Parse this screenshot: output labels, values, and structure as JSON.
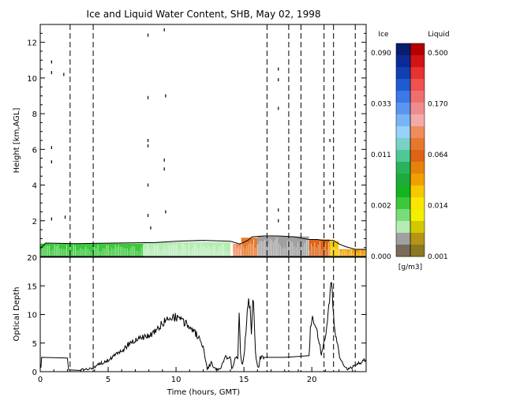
{
  "title": "Ice and Liquid Water Content, SHB, May 02, 1998",
  "colorbar": {
    "ice_header": "Ice",
    "liquid_header": "Liquid",
    "units": "[g/m3]",
    "ice_ticks": [
      "0.090",
      "0.033",
      "0.011",
      "0.002",
      "0.000"
    ],
    "liquid_ticks": [
      "0.500",
      "0.170",
      "0.064",
      "0.014",
      "0.001"
    ],
    "ice_colors": [
      "#0a1e6e",
      "#0c2a96",
      "#1040b4",
      "#1e5ad2",
      "#3c78e6",
      "#5a96f0",
      "#78b4f5",
      "#96d2fa",
      "#78d2c8",
      "#50c896",
      "#28b45a",
      "#1eaa3c",
      "#14b41e",
      "#3cc83c",
      "#78dc78",
      "#b4ecb4",
      "#a0a0a0",
      "#7a6a5a"
    ],
    "liquid_colors": [
      "#b40000",
      "#d21414",
      "#e63232",
      "#f05050",
      "#f06e6e",
      "#f08c8c",
      "#f5aaaa",
      "#f08c5a",
      "#e6782d",
      "#dc6414",
      "#e6820a",
      "#f0a000",
      "#f5c800",
      "#fae600",
      "#f0f000",
      "#d2c800",
      "#b49614",
      "#8c7820"
    ]
  },
  "chart_data": [
    {
      "type": "heatmap",
      "title": "Ice and Liquid Water Content, SHB, May 02, 1998",
      "ylabel": "Height [km,AGL]",
      "xlim": [
        0,
        24
      ],
      "ylim": [
        0,
        13
      ],
      "yticks": [
        2,
        4,
        6,
        8,
        10,
        12
      ],
      "cloud_top_km": {
        "x": [
          0,
          0.4,
          2.6,
          8.5,
          10.0,
          12.0,
          14.0,
          14.7,
          15.3,
          15.6,
          16.5,
          17.5,
          18.7,
          19.8,
          20.4,
          20.9,
          21.6,
          22.0,
          22.5,
          23.2,
          24.0
        ],
        "y": [
          0.45,
          0.75,
          0.72,
          0.78,
          0.85,
          0.9,
          0.85,
          0.7,
          0.9,
          1.1,
          1.15,
          1.15,
          1.1,
          0.95,
          0.95,
          0.9,
          0.9,
          0.7,
          0.55,
          0.4,
          0.4
        ]
      },
      "segments": [
        {
          "x0": 0.0,
          "x1": 14.0,
          "phase": "liquid-low",
          "color": "#3cc83c",
          "top_km": 0.72
        },
        {
          "x0": 7.6,
          "x1": 14.0,
          "phase": "ice-low",
          "color": "#b4ecb4",
          "top_km": 0.8
        },
        {
          "x0": 14.2,
          "x1": 14.8,
          "phase": "liquid-mid",
          "color": "#f08c5a",
          "top_km": 0.7
        },
        {
          "x0": 14.8,
          "x1": 16.0,
          "phase": "liquid-mid",
          "color": "#e6782d",
          "top_km": 1.05
        },
        {
          "x0": 16.0,
          "x1": 19.8,
          "phase": "ice-low",
          "color": "#a0a0a0",
          "top_km": 1.12
        },
        {
          "x0": 19.8,
          "x1": 21.3,
          "phase": "liquid-mid",
          "color": "#dc6414",
          "top_km": 0.95
        },
        {
          "x0": 21.3,
          "x1": 22.0,
          "phase": "liquid-low",
          "color": "#f5c800",
          "top_km": 0.85
        },
        {
          "x0": 22.0,
          "x1": 24.0,
          "phase": "liquid-low",
          "color": "#f0a000",
          "top_km": 0.4
        }
      ],
      "sparse_ice_points": [
        [
          0.8,
          10.9
        ],
        [
          0.8,
          10.3
        ],
        [
          0.8,
          6.1
        ],
        [
          0.8,
          5.3
        ],
        [
          0.8,
          2.1
        ],
        [
          1.7,
          10.2
        ],
        [
          1.8,
          2.2
        ],
        [
          7.9,
          12.4
        ],
        [
          7.9,
          8.9
        ],
        [
          7.9,
          6.5
        ],
        [
          7.9,
          6.2
        ],
        [
          7.9,
          4.0
        ],
        [
          7.9,
          2.3
        ],
        [
          8.1,
          1.6
        ],
        [
          9.1,
          12.7
        ],
        [
          9.1,
          5.4
        ],
        [
          9.1,
          4.9
        ],
        [
          9.2,
          9.0
        ],
        [
          9.2,
          2.5
        ],
        [
          17.5,
          10.5
        ],
        [
          17.5,
          9.9
        ],
        [
          17.5,
          8.3
        ],
        [
          17.5,
          2.6
        ],
        [
          17.5,
          2.0
        ],
        [
          21.3,
          6.5
        ],
        [
          21.3,
          4.1
        ],
        [
          21.3,
          2.8
        ],
        [
          21.3,
          1.7
        ]
      ]
    },
    {
      "type": "line",
      "xlabel": "Time (hours, GMT)",
      "ylabel": "Optical Depth",
      "xlim": [
        0,
        24
      ],
      "ylim": [
        0,
        20
      ],
      "xticks": [
        0,
        5,
        10,
        15,
        20
      ],
      "yticks": [
        0,
        5,
        10,
        15,
        20
      ],
      "series": [
        {
          "x": [
            0,
            0.05,
            0.1,
            2.0,
            2.1,
            3.0,
            3.9,
            4.0,
            4.2,
            4.5,
            5.0,
            5.5,
            6.0,
            6.5,
            7.0,
            7.5,
            8.0,
            8.5,
            9.0,
            9.5,
            10.0,
            10.5,
            11.0,
            11.5,
            12.0,
            12.3,
            12.6,
            12.9,
            13.3,
            13.6,
            14.0,
            14.1,
            14.2,
            14.4,
            14.55,
            14.65,
            14.75,
            14.85,
            15.0,
            15.15,
            15.3,
            15.45,
            15.55,
            15.65,
            15.75,
            15.85,
            16.0,
            16.1,
            16.2,
            16.3,
            16.5,
            18.0,
            19.8,
            19.9,
            20.1,
            20.3,
            20.5,
            20.7,
            20.9,
            21.1,
            21.25,
            21.4,
            21.55,
            21.7,
            21.9,
            22.1,
            22.4,
            22.7,
            23.0,
            23.3,
            23.6,
            24.0
          ],
          "y": [
            1.5,
            0.5,
            2.5,
            2.5,
            0.3,
            0.3,
            0.5,
            0.8,
            1.2,
            1.5,
            2.0,
            2.8,
            3.6,
            4.8,
            5.4,
            6.0,
            6.2,
            7.0,
            8.5,
            9.5,
            9.5,
            8.8,
            7.8,
            6.5,
            4.5,
            0.5,
            1.5,
            0.4,
            0.5,
            2.5,
            2.5,
            0.5,
            1.0,
            2.5,
            2.0,
            10.5,
            3.5,
            1.2,
            2.5,
            7.0,
            12.0,
            12.0,
            7.0,
            12.5,
            10.5,
            3.0,
            1.0,
            0.8,
            2.5,
            2.5,
            2.5,
            2.5,
            2.5,
            8.0,
            9.5,
            7.5,
            5.8,
            3.2,
            5.0,
            7.5,
            11.0,
            16.5,
            12.0,
            7.0,
            4.5,
            2.0,
            1.0,
            0.4,
            0.8,
            1.3,
            1.6,
            2.2
          ]
        }
      ]
    }
  ],
  "dashed_lines_hours": [
    2.2,
    3.9,
    16.7,
    18.3,
    19.2,
    20.9,
    21.6,
    23.2
  ]
}
